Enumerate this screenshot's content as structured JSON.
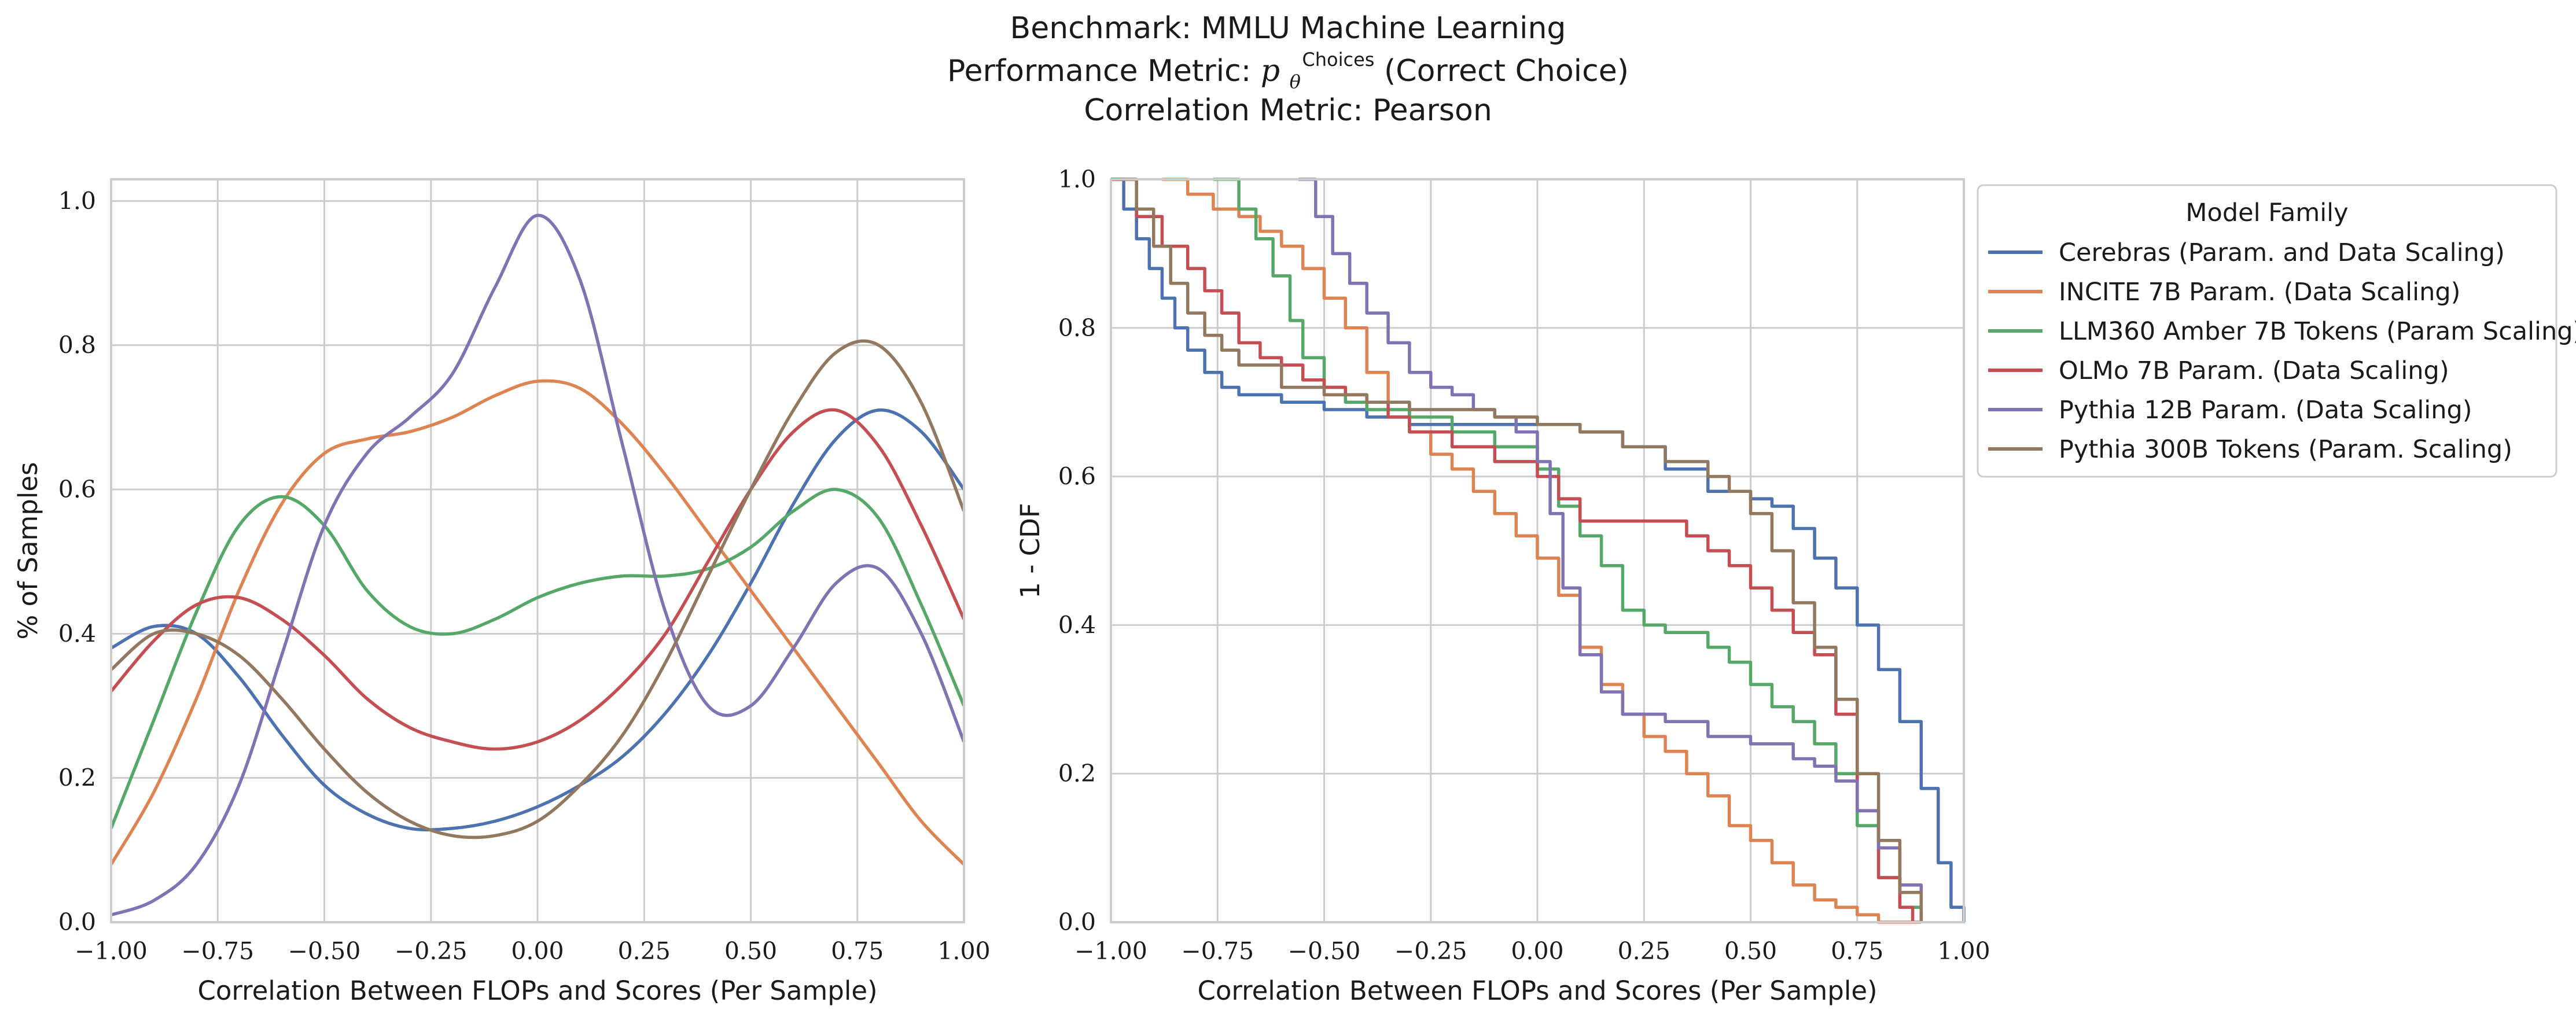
{
  "figure": {
    "title": {
      "line1": "Benchmark: MMLU Machine Learning",
      "line2_prefix": "Performance Metric: ",
      "line2_symbol": "p",
      "line2_sub": "θ",
      "line2_sup": "Choices",
      "line2_suffix": "(Correct Choice)",
      "line3": "Correlation Metric: Pearson"
    }
  },
  "colors": {
    "Cerebras (Param. and Data Scaling)": "#4c72b0",
    "INCITE 7B Param. (Data Scaling)": "#dd8452",
    "LLM360 Amber 7B Tokens (Param Scaling)": "#55a868",
    "OLMo 7B Param. (Data Scaling)": "#c44e52",
    "Pythia 12B Param. (Data Scaling)": "#8172b3",
    "Pythia 300B Tokens (Param. Scaling)": "#937860"
  },
  "legend": {
    "title": "Model Family",
    "entries": [
      "Cerebras (Param. and Data Scaling)",
      "INCITE 7B Param. (Data Scaling)",
      "LLM360 Amber 7B Tokens (Param Scaling)",
      "OLMo 7B Param. (Data Scaling)",
      "Pythia 12B Param. (Data Scaling)",
      "Pythia 300B Tokens (Param. Scaling)"
    ],
    "placement": "outside-right-top"
  },
  "chart_data": [
    {
      "type": "line",
      "kind": "kde",
      "xlabel": "Correlation Between FLOPs and Scores (Per Sample)",
      "ylabel": "% of Samples",
      "xlim": [
        -1.0,
        1.0
      ],
      "ylim": [
        0.0,
        1.03
      ],
      "xticks": [
        "−1.00",
        "−0.75",
        "−0.50",
        "−0.25",
        "0.00",
        "0.25",
        "0.50",
        "0.75",
        "1.00"
      ],
      "yticks": [
        "0.0",
        "0.2",
        "0.4",
        "0.6",
        "0.8",
        "1.0"
      ],
      "grid": true,
      "x": [
        -1.0,
        -0.9,
        -0.8,
        -0.7,
        -0.6,
        -0.5,
        -0.4,
        -0.3,
        -0.2,
        -0.1,
        0.0,
        0.1,
        0.2,
        0.3,
        0.4,
        0.5,
        0.6,
        0.7,
        0.8,
        0.9,
        1.0
      ],
      "series": [
        {
          "name": "Cerebras (Param. and Data Scaling)",
          "values": [
            0.38,
            0.41,
            0.4,
            0.34,
            0.26,
            0.19,
            0.15,
            0.13,
            0.13,
            0.14,
            0.16,
            0.19,
            0.23,
            0.29,
            0.37,
            0.47,
            0.58,
            0.67,
            0.71,
            0.68,
            0.6
          ]
        },
        {
          "name": "INCITE 7B Param. (Data Scaling)",
          "values": [
            0.08,
            0.18,
            0.31,
            0.46,
            0.58,
            0.65,
            0.67,
            0.68,
            0.7,
            0.73,
            0.75,
            0.74,
            0.69,
            0.62,
            0.54,
            0.46,
            0.38,
            0.3,
            0.22,
            0.14,
            0.08
          ]
        },
        {
          "name": "LLM360 Amber 7B Tokens (Param Scaling)",
          "values": [
            0.13,
            0.28,
            0.43,
            0.55,
            0.59,
            0.55,
            0.46,
            0.41,
            0.4,
            0.42,
            0.45,
            0.47,
            0.48,
            0.48,
            0.49,
            0.52,
            0.57,
            0.6,
            0.56,
            0.44,
            0.3
          ]
        },
        {
          "name": "OLMo 7B Param. (Data Scaling)",
          "values": [
            0.32,
            0.39,
            0.44,
            0.45,
            0.42,
            0.37,
            0.31,
            0.27,
            0.25,
            0.24,
            0.25,
            0.28,
            0.33,
            0.4,
            0.5,
            0.6,
            0.68,
            0.71,
            0.66,
            0.55,
            0.42
          ]
        },
        {
          "name": "Pythia 12B Param. (Data Scaling)",
          "values": [
            0.01,
            0.03,
            0.08,
            0.19,
            0.37,
            0.55,
            0.65,
            0.7,
            0.76,
            0.88,
            0.98,
            0.89,
            0.66,
            0.43,
            0.3,
            0.3,
            0.38,
            0.47,
            0.49,
            0.4,
            0.25
          ]
        },
        {
          "name": "Pythia 300B Tokens (Param. Scaling)",
          "values": [
            0.35,
            0.4,
            0.4,
            0.37,
            0.31,
            0.24,
            0.18,
            0.14,
            0.12,
            0.12,
            0.14,
            0.19,
            0.26,
            0.36,
            0.48,
            0.6,
            0.71,
            0.79,
            0.8,
            0.72,
            0.57
          ]
        }
      ]
    },
    {
      "type": "line",
      "kind": "step",
      "xlabel": "Correlation Between FLOPs and Scores (Per Sample)",
      "ylabel": "1 - CDF",
      "xlim": [
        -1.0,
        1.0
      ],
      "ylim": [
        0.0,
        1.0
      ],
      "xticks": [
        "−1.00",
        "−0.75",
        "−0.50",
        "−0.25",
        "0.00",
        "0.25",
        "0.50",
        "0.75",
        "1.00"
      ],
      "yticks": [
        "0.0",
        "0.2",
        "0.4",
        "0.6",
        "0.8",
        "1.0"
      ],
      "grid": true,
      "series": [
        {
          "name": "Cerebras (Param. and Data Scaling)",
          "x": [
            -1.0,
            -0.97,
            -0.94,
            -0.91,
            -0.88,
            -0.85,
            -0.82,
            -0.78,
            -0.74,
            -0.7,
            -0.6,
            -0.5,
            -0.4,
            -0.3,
            -0.2,
            -0.1,
            0.0,
            0.1,
            0.2,
            0.3,
            0.4,
            0.5,
            0.55,
            0.6,
            0.65,
            0.7,
            0.75,
            0.8,
            0.85,
            0.9,
            0.94,
            0.97,
            1.0
          ],
          "y": [
            1.0,
            0.96,
            0.92,
            0.88,
            0.84,
            0.8,
            0.77,
            0.74,
            0.72,
            0.71,
            0.7,
            0.69,
            0.68,
            0.67,
            0.67,
            0.67,
            0.67,
            0.66,
            0.64,
            0.61,
            0.58,
            0.57,
            0.56,
            0.53,
            0.49,
            0.45,
            0.4,
            0.34,
            0.27,
            0.18,
            0.08,
            0.02,
            0.0
          ]
        },
        {
          "name": "INCITE 7B Param. (Data Scaling)",
          "x": [
            -0.88,
            -0.82,
            -0.76,
            -0.7,
            -0.65,
            -0.6,
            -0.55,
            -0.5,
            -0.45,
            -0.4,
            -0.35,
            -0.3,
            -0.25,
            -0.2,
            -0.15,
            -0.1,
            -0.05,
            0.0,
            0.05,
            0.1,
            0.15,
            0.2,
            0.25,
            0.3,
            0.35,
            0.4,
            0.45,
            0.5,
            0.55,
            0.6,
            0.65,
            0.7,
            0.75,
            0.8,
            0.85,
            0.9
          ],
          "y": [
            1.0,
            0.98,
            0.96,
            0.95,
            0.93,
            0.91,
            0.88,
            0.84,
            0.8,
            0.74,
            0.7,
            0.66,
            0.63,
            0.61,
            0.58,
            0.55,
            0.52,
            0.49,
            0.44,
            0.37,
            0.32,
            0.28,
            0.25,
            0.23,
            0.2,
            0.17,
            0.13,
            0.11,
            0.08,
            0.05,
            0.03,
            0.02,
            0.01,
            0.0,
            0.0,
            0.0
          ]
        },
        {
          "name": "LLM360 Amber 7B Tokens (Param Scaling)",
          "x": [
            -0.76,
            -0.7,
            -0.66,
            -0.62,
            -0.58,
            -0.55,
            -0.5,
            -0.45,
            -0.4,
            -0.3,
            -0.2,
            -0.1,
            0.0,
            0.05,
            0.1,
            0.15,
            0.2,
            0.25,
            0.3,
            0.4,
            0.45,
            0.5,
            0.55,
            0.6,
            0.65,
            0.7,
            0.75,
            0.8,
            0.85,
            0.9
          ],
          "y": [
            1.0,
            0.96,
            0.92,
            0.87,
            0.81,
            0.76,
            0.72,
            0.7,
            0.69,
            0.68,
            0.66,
            0.64,
            0.61,
            0.56,
            0.52,
            0.48,
            0.42,
            0.4,
            0.39,
            0.37,
            0.35,
            0.32,
            0.29,
            0.27,
            0.24,
            0.2,
            0.13,
            0.06,
            0.02,
            0.0
          ]
        },
        {
          "name": "OLMo 7B Param. (Data Scaling)",
          "x": [
            -1.0,
            -0.94,
            -0.88,
            -0.82,
            -0.78,
            -0.74,
            -0.7,
            -0.65,
            -0.6,
            -0.55,
            -0.5,
            -0.45,
            -0.4,
            -0.35,
            -0.3,
            -0.2,
            -0.1,
            0.0,
            0.05,
            0.1,
            0.2,
            0.3,
            0.35,
            0.4,
            0.45,
            0.5,
            0.55,
            0.6,
            0.65,
            0.7,
            0.75,
            0.8,
            0.85,
            0.88
          ],
          "y": [
            1.0,
            0.95,
            0.91,
            0.88,
            0.85,
            0.82,
            0.78,
            0.76,
            0.75,
            0.73,
            0.72,
            0.71,
            0.7,
            0.68,
            0.66,
            0.64,
            0.62,
            0.6,
            0.57,
            0.54,
            0.54,
            0.54,
            0.52,
            0.5,
            0.48,
            0.45,
            0.42,
            0.39,
            0.36,
            0.28,
            0.15,
            0.06,
            0.02,
            0.0
          ]
        },
        {
          "name": "Pythia 12B Param. (Data Scaling)",
          "x": [
            -0.56,
            -0.52,
            -0.48,
            -0.44,
            -0.4,
            -0.35,
            -0.3,
            -0.25,
            -0.2,
            -0.15,
            -0.1,
            -0.05,
            0.0,
            0.03,
            0.06,
            0.1,
            0.15,
            0.2,
            0.3,
            0.4,
            0.5,
            0.6,
            0.65,
            0.7,
            0.75,
            0.8,
            0.85,
            0.9
          ],
          "y": [
            1.0,
            0.95,
            0.9,
            0.86,
            0.82,
            0.78,
            0.74,
            0.72,
            0.71,
            0.69,
            0.68,
            0.66,
            0.62,
            0.55,
            0.45,
            0.36,
            0.31,
            0.28,
            0.27,
            0.25,
            0.24,
            0.22,
            0.21,
            0.19,
            0.15,
            0.1,
            0.05,
            0.0
          ]
        },
        {
          "name": "Pythia 300B Tokens (Param. Scaling)",
          "x": [
            -0.98,
            -0.94,
            -0.9,
            -0.86,
            -0.82,
            -0.78,
            -0.74,
            -0.7,
            -0.6,
            -0.5,
            -0.4,
            -0.3,
            -0.2,
            -0.1,
            0.0,
            0.1,
            0.2,
            0.3,
            0.4,
            0.45,
            0.5,
            0.55,
            0.6,
            0.65,
            0.7,
            0.75,
            0.8,
            0.85,
            0.9
          ],
          "y": [
            1.0,
            0.96,
            0.91,
            0.86,
            0.82,
            0.79,
            0.77,
            0.75,
            0.72,
            0.71,
            0.7,
            0.69,
            0.69,
            0.68,
            0.67,
            0.66,
            0.64,
            0.62,
            0.6,
            0.58,
            0.55,
            0.5,
            0.43,
            0.37,
            0.3,
            0.2,
            0.11,
            0.04,
            0.0
          ]
        }
      ]
    }
  ]
}
